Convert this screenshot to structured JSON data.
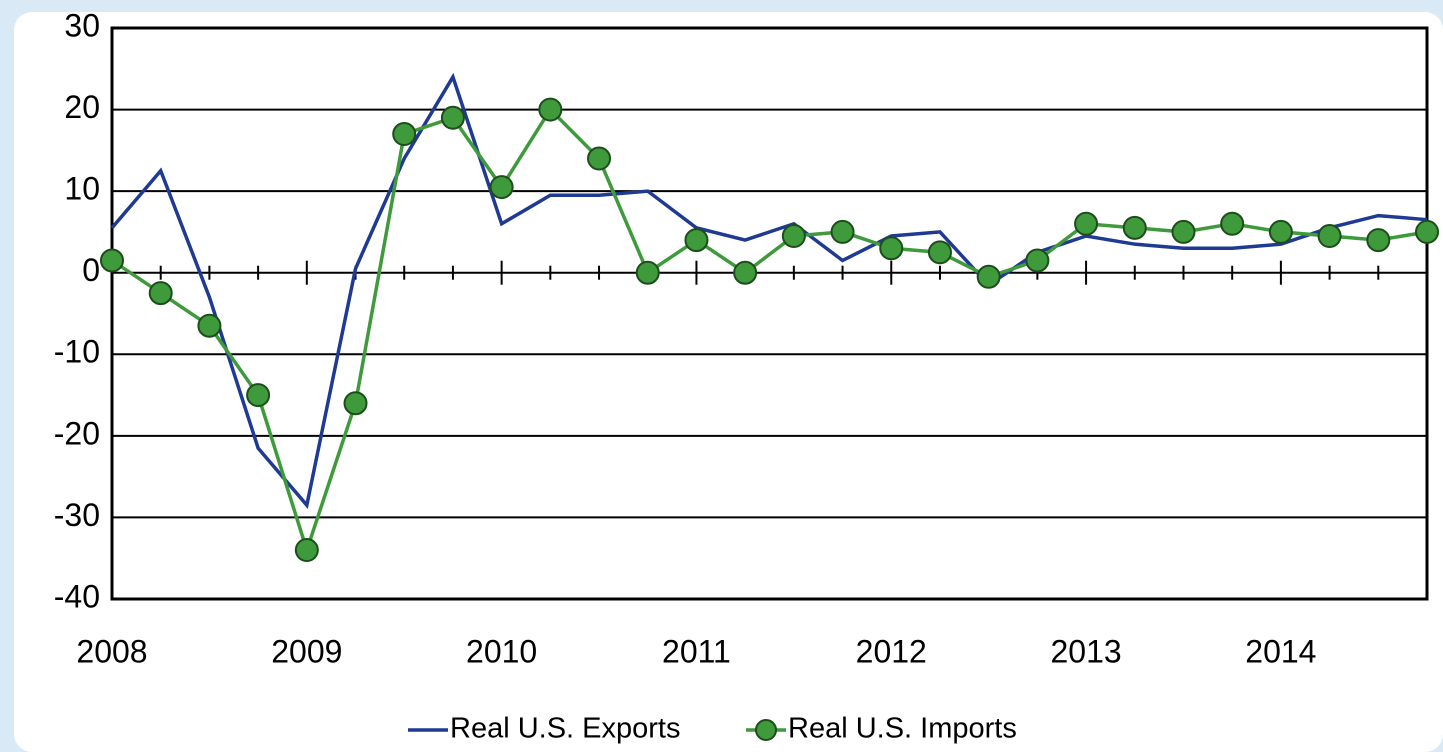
{
  "chart_data": {
    "type": "line",
    "categories": [
      "2008",
      null,
      null,
      null,
      "2009",
      null,
      null,
      null,
      "2010",
      null,
      null,
      null,
      "2011",
      null,
      null,
      null,
      "2012",
      null,
      null,
      null,
      "2013",
      null,
      null,
      null,
      "2014",
      null,
      null,
      null
    ],
    "series": [
      {
        "name": "Real U.S. Exports",
        "color": "#1f3a93",
        "marker": false,
        "values": [
          5.5,
          12.5,
          -3,
          -21.5,
          -28.5,
          0.5,
          14,
          24,
          6,
          9.5,
          9.5,
          10,
          5.5,
          4,
          6,
          1.5,
          4.5,
          5,
          -1.5,
          2.5,
          4.5,
          3.5,
          3,
          3,
          3.5,
          5.5,
          7,
          6.5
        ]
      },
      {
        "name": "Real U.S. Imports",
        "color": "#3f9a3c",
        "marker": true,
        "values": [
          1.5,
          -2.5,
          -6.5,
          -15,
          -34,
          -16,
          17,
          19,
          10.5,
          20,
          14,
          0,
          4,
          0,
          4.5,
          5,
          3,
          2.5,
          -0.5,
          1.5,
          6,
          5.5,
          5,
          6,
          5,
          4.5,
          4,
          5
        ]
      }
    ],
    "ylim": [
      -40,
      30
    ],
    "yticks": [
      -40,
      -30,
      -20,
      -10,
      0,
      10,
      20,
      30
    ],
    "grid": true,
    "legend": "bottom"
  }
}
